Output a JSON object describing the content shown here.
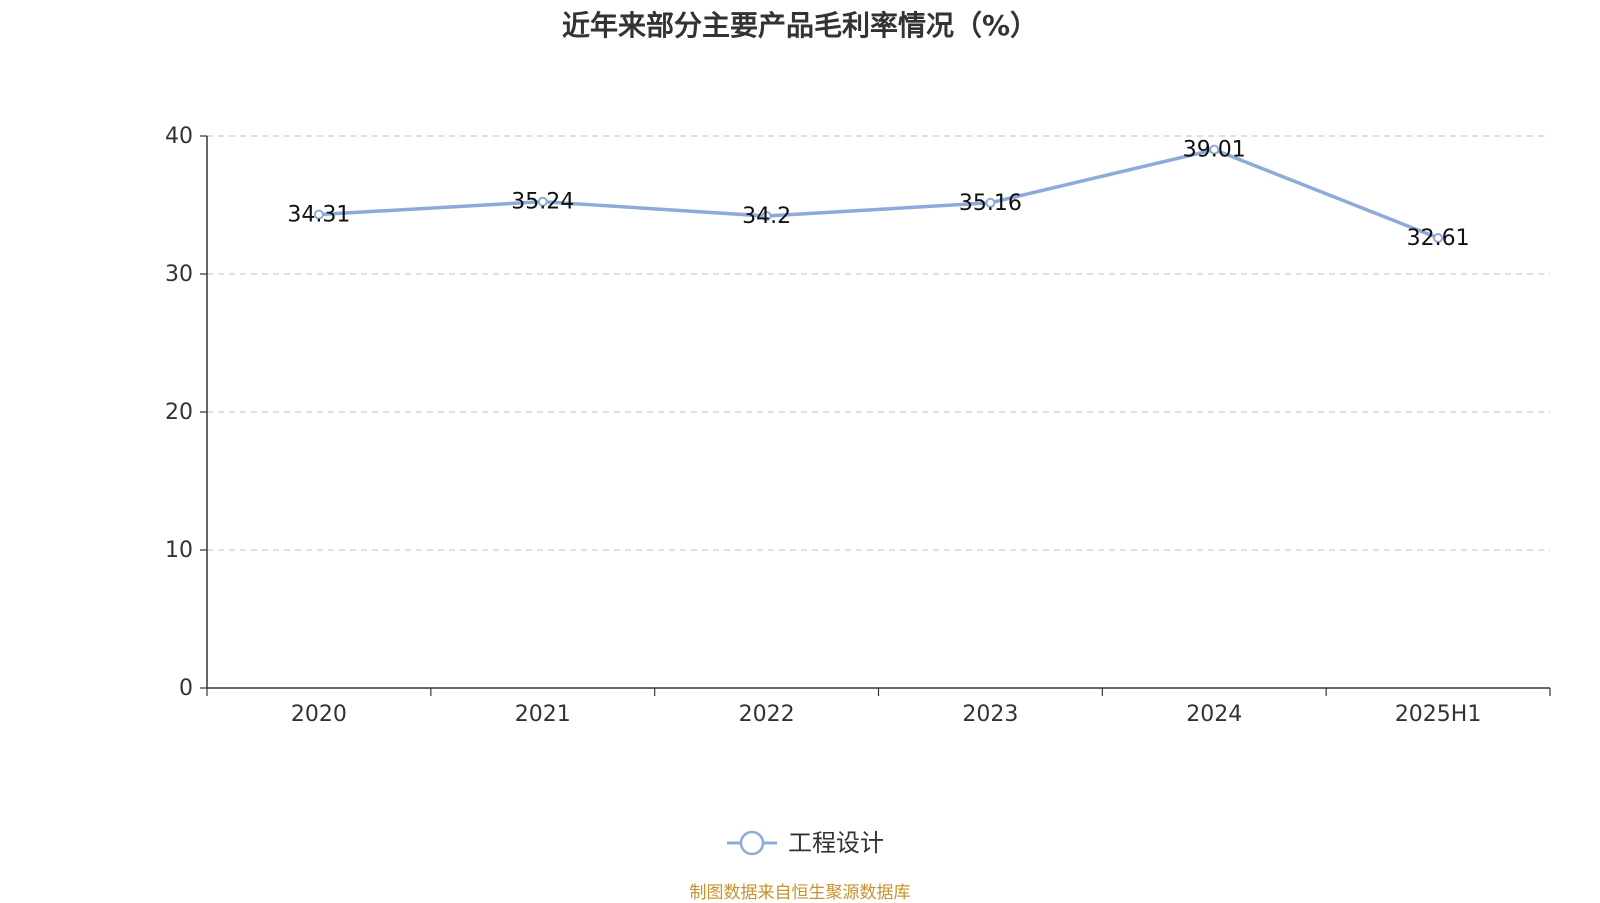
{
  "title": "近年来部分主要产品毛利率情况（%）",
  "source_note": "制图数据来自恒生聚源数据库",
  "colors": {
    "series": "#8eaad8",
    "axis": "#333333",
    "grid": "#cccccc",
    "text": "#333333",
    "source": "#c8922a"
  },
  "chart_data": {
    "type": "line",
    "title": "近年来部分主要产品毛利率情况（%）",
    "categories": [
      "2020",
      "2021",
      "2022",
      "2023",
      "2024",
      "2025H1"
    ],
    "series": [
      {
        "name": "工程设计",
        "values": [
          34.31,
          35.24,
          34.2,
          35.16,
          39.01,
          32.61
        ]
      }
    ],
    "data_labels": [
      "34.31",
      "35.24",
      "34.2",
      "35.16",
      "39.01",
      "32.61"
    ],
    "ylim": [
      0,
      40
    ],
    "yticks": [
      0,
      10,
      20,
      30,
      40
    ],
    "grid": true,
    "legend": "bottom-center",
    "xlabel": "",
    "ylabel": ""
  }
}
